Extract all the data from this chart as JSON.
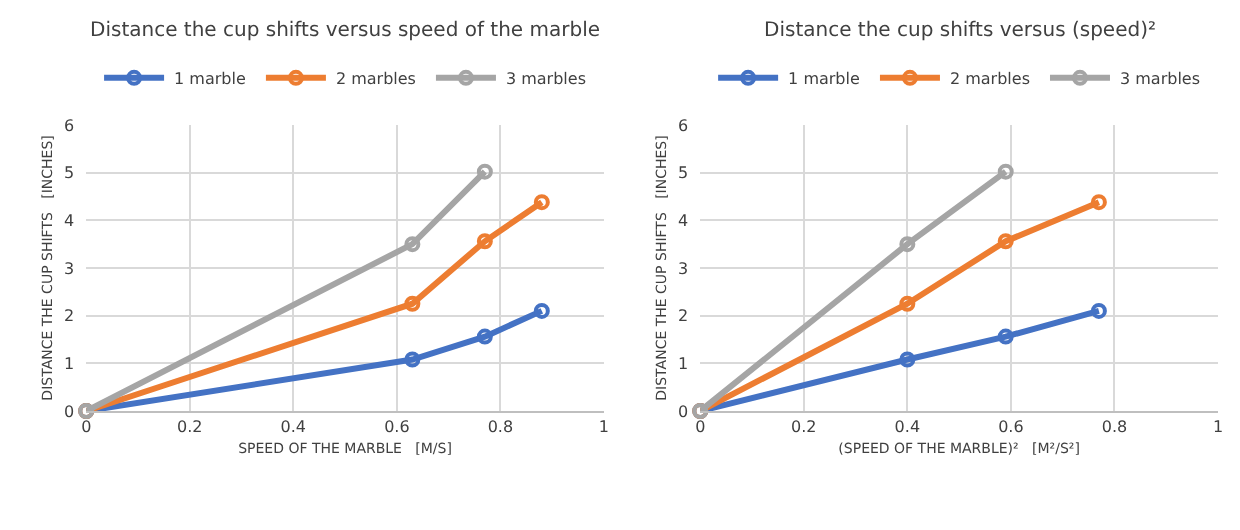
{
  "chart_data": [
    {
      "type": "line",
      "title": "Distance the cup shifts versus speed of the marble",
      "xlabel": "SPEED OF THE MARBLE   [M/S]",
      "ylabel": "DISTANCE THE CUP SHIFTS   [INCHES]",
      "series": [
        {
          "name": "1 marble",
          "color": "#4472c4",
          "x": [
            0,
            0.63,
            0.77,
            0.88
          ],
          "values": [
            0,
            1.08,
            1.56,
            2.1
          ]
        },
        {
          "name": "2 marbles",
          "color": "#ed7d31",
          "x": [
            0,
            0.63,
            0.77,
            0.88
          ],
          "values": [
            0,
            2.25,
            3.56,
            4.38
          ]
        },
        {
          "name": "3 marbles",
          "color": "#a5a5a5",
          "x": [
            0,
            0.63,
            0.77
          ],
          "values": [
            0,
            3.5,
            5.02
          ]
        }
      ],
      "xlim": [
        0,
        1
      ],
      "xticks": [
        0,
        0.2,
        0.4,
        0.6,
        0.8,
        1
      ],
      "ylim": [
        0,
        6
      ],
      "yticks": [
        0,
        1,
        2,
        3,
        4,
        5,
        6
      ],
      "grid": true,
      "legend": "top",
      "marker": "circle",
      "line_style": "solid"
    },
    {
      "type": "line",
      "title": "Distance the cup shifts versus (speed)²",
      "xlabel": "(SPEED OF THE MARBLE)²   [M²/S²]",
      "ylabel": "DISTANCE THE CUP SHIFTS   [INCHES]",
      "series": [
        {
          "name": "1 marble",
          "color": "#4472c4",
          "x": [
            0,
            0.4,
            0.59,
            0.77
          ],
          "values": [
            0,
            1.08,
            1.56,
            2.1
          ]
        },
        {
          "name": "2 marbles",
          "color": "#ed7d31",
          "x": [
            0,
            0.4,
            0.59,
            0.77
          ],
          "values": [
            0,
            2.25,
            3.56,
            4.38
          ]
        },
        {
          "name": "3 marbles",
          "color": "#a5a5a5",
          "x": [
            0,
            0.4,
            0.59
          ],
          "values": [
            0,
            3.5,
            5.02
          ]
        }
      ],
      "xlim": [
        0,
        1
      ],
      "xticks": [
        0,
        0.2,
        0.4,
        0.6,
        0.8,
        1
      ],
      "ylim": [
        0,
        6
      ],
      "yticks": [
        0,
        1,
        2,
        3,
        4,
        5,
        6
      ],
      "grid": true,
      "legend": "top",
      "marker": "circle",
      "line_style": "solid"
    }
  ]
}
